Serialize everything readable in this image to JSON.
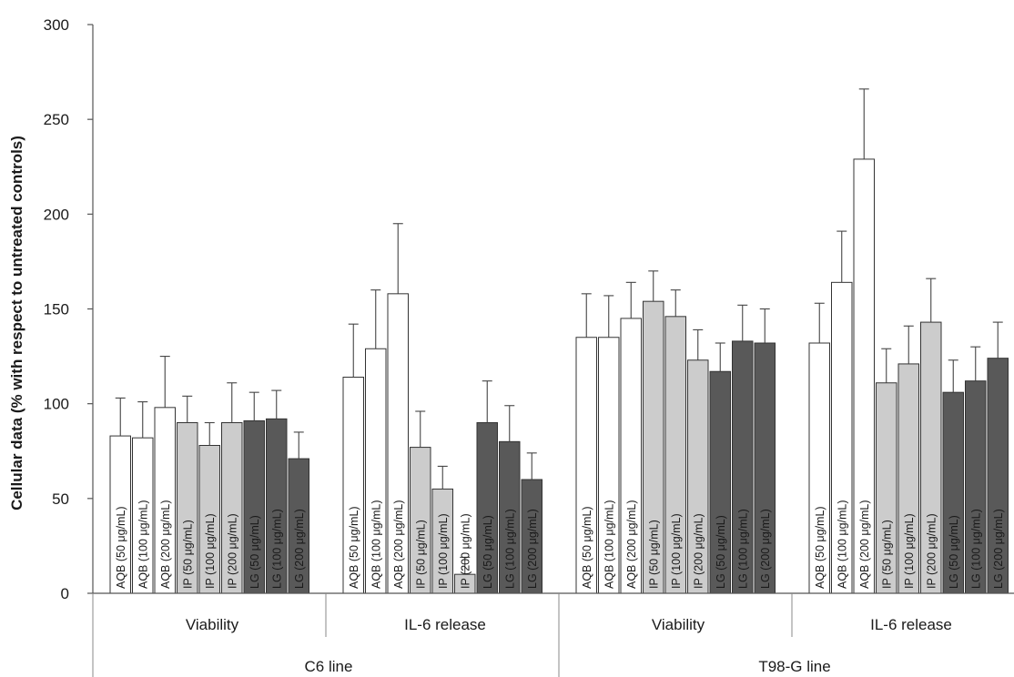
{
  "chart_data": {
    "type": "bar",
    "ylabel": "Cellular data (% with respect to untreated controls)",
    "ylim": [
      0,
      300
    ],
    "yticks": [
      0,
      50,
      100,
      150,
      200,
      250,
      300
    ],
    "grid": false,
    "colors": {
      "AQB": "#ffffff",
      "IP": "#cccccc",
      "LG": "#595959",
      "stroke": "#333333"
    },
    "bar_labels": [
      "AQB (50 μg/mL)",
      "AQB (100 μg/mL)",
      "AQB (200 μg/mL)",
      "IP (50 μg/mL)",
      "IP (100 μg/mL)",
      "IP (200 μg/mL)",
      "LG (50 μg/mL)",
      "LG (100 μg/mL)",
      "LG (200 μg/mL)"
    ],
    "bar_groups": [
      "AQB",
      "AQB",
      "AQB",
      "IP",
      "IP",
      "IP",
      "LG",
      "LG",
      "LG"
    ],
    "cell_lines": [
      {
        "name": "C6 line",
        "groups": [
          {
            "name": "Viability",
            "values": [
              83,
              82,
              98,
              90,
              78,
              90,
              91,
              92,
              71
            ],
            "errors": [
              20,
              19,
              27,
              14,
              12,
              21,
              15,
              15,
              14
            ]
          },
          {
            "name": "IL-6 release",
            "values": [
              114,
              129,
              158,
              77,
              55,
              10,
              90,
              80,
              60
            ],
            "errors": [
              28,
              31,
              37,
              19,
              12,
              9,
              22,
              19,
              14
            ]
          }
        ]
      },
      {
        "name": "T98-G line",
        "groups": [
          {
            "name": "Viability",
            "values": [
              135,
              135,
              145,
              154,
              146,
              123,
              117,
              133,
              132
            ],
            "errors": [
              23,
              22,
              19,
              16,
              14,
              16,
              15,
              19,
              18
            ]
          },
          {
            "name": "IL-6 release",
            "values": [
              132,
              164,
              229,
              111,
              121,
              143,
              106,
              112,
              124
            ],
            "errors": [
              21,
              27,
              37,
              18,
              20,
              23,
              17,
              18,
              19
            ]
          }
        ]
      }
    ]
  }
}
